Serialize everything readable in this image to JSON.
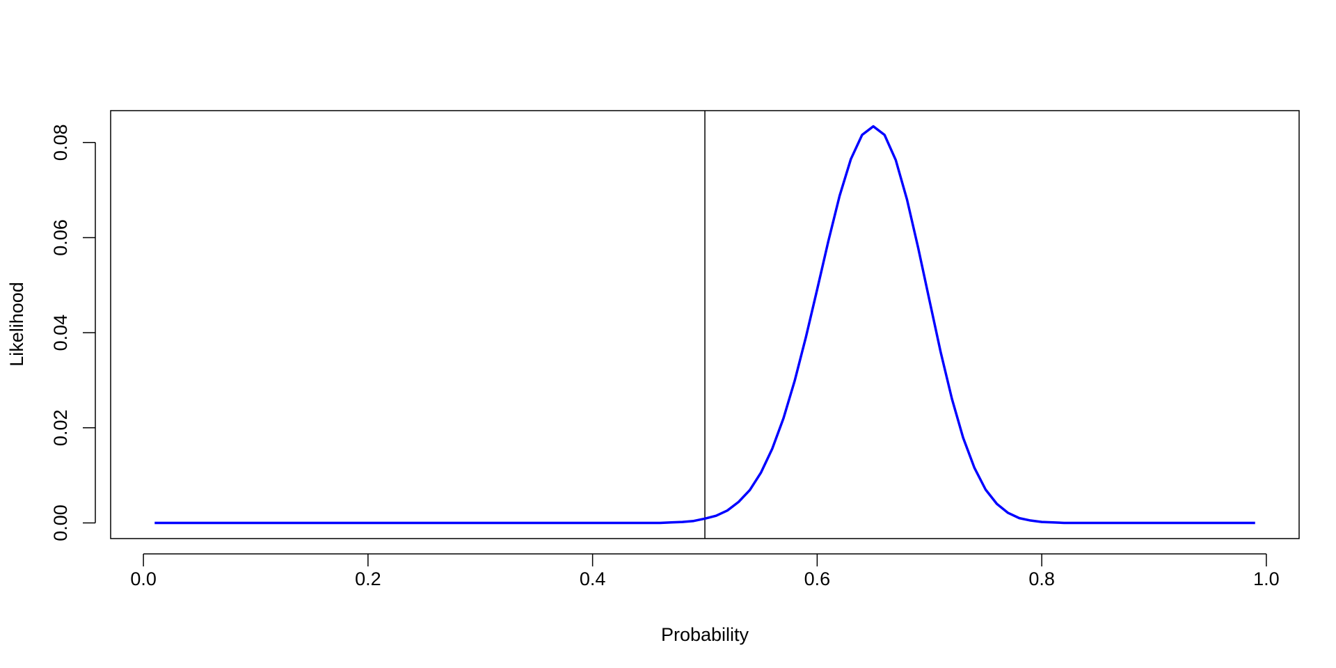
{
  "chart_data": {
    "type": "line",
    "x_label": "Probability",
    "y_label": "Likelihood",
    "x": [
      0.01,
      0.02,
      0.03,
      0.04,
      0.05,
      0.06,
      0.07,
      0.08,
      0.09,
      0.1,
      0.11,
      0.12,
      0.13,
      0.14,
      0.15,
      0.16,
      0.17,
      0.18,
      0.19,
      0.2,
      0.21,
      0.22,
      0.23,
      0.24,
      0.25,
      0.26,
      0.27,
      0.28,
      0.29,
      0.3,
      0.31,
      0.32,
      0.33,
      0.34,
      0.35,
      0.36,
      0.37,
      0.38,
      0.39,
      0.4,
      0.41,
      0.42,
      0.43,
      0.44,
      0.45,
      0.46,
      0.47,
      0.48,
      0.49,
      0.5,
      0.51,
      0.52,
      0.53,
      0.54,
      0.55,
      0.56,
      0.57,
      0.58,
      0.59,
      0.6,
      0.61,
      0.62,
      0.63,
      0.64,
      0.65,
      0.66,
      0.67,
      0.68,
      0.69,
      0.7,
      0.71,
      0.72,
      0.73,
      0.74,
      0.75,
      0.76,
      0.77,
      0.78,
      0.79,
      0.8,
      0.81,
      0.82,
      0.83,
      0.84,
      0.85,
      0.86,
      0.87,
      0.88,
      0.89,
      0.9,
      0.91,
      0.92,
      0.93,
      0.94,
      0.95,
      0.96,
      0.97,
      0.98,
      0.99
    ],
    "values": [
      0,
      0,
      0,
      0,
      0,
      0,
      0,
      0,
      0,
      0,
      0,
      0,
      0,
      0,
      0,
      0,
      0,
      0,
      0,
      0,
      0,
      0,
      0,
      0,
      0,
      0,
      0,
      0,
      0,
      0,
      0,
      0,
      0,
      0,
      0,
      0,
      0,
      0,
      0,
      0,
      0,
      0,
      0,
      0,
      0,
      0,
      0.0001,
      0.0002,
      0.0004,
      0.0009,
      0.0015,
      0.0026,
      0.0044,
      0.0069,
      0.0106,
      0.0156,
      0.022,
      0.0299,
      0.0391,
      0.0491,
      0.0593,
      0.0688,
      0.0765,
      0.0816,
      0.0834,
      0.0816,
      0.0763,
      0.068,
      0.0578,
      0.0468,
      0.0359,
      0.0261,
      0.0179,
      0.0116,
      0.007,
      0.004,
      0.0021,
      0.001,
      0.0005,
      0.0002,
      0.0001,
      0,
      0,
      0,
      0,
      0,
      0,
      0,
      0,
      0,
      0,
      0,
      0,
      0,
      0,
      0,
      0,
      0,
      0
    ],
    "color": "#0000ff",
    "vlines": [
      0.5
    ],
    "xlim": [
      -0.0292,
      1.0292
    ],
    "xticks": [
      {
        "value": 0,
        "label": "0.0"
      },
      0.2,
      0.4,
      0.6,
      0.8,
      {
        "value": 1,
        "label": "1.0"
      }
    ],
    "ylim": [
      -0.0033,
      0.0867
    ],
    "yticks": [
      {
        "value": 0,
        "label": "0.00"
      },
      0.02,
      0.04,
      0.06,
      0.08
    ]
  }
}
